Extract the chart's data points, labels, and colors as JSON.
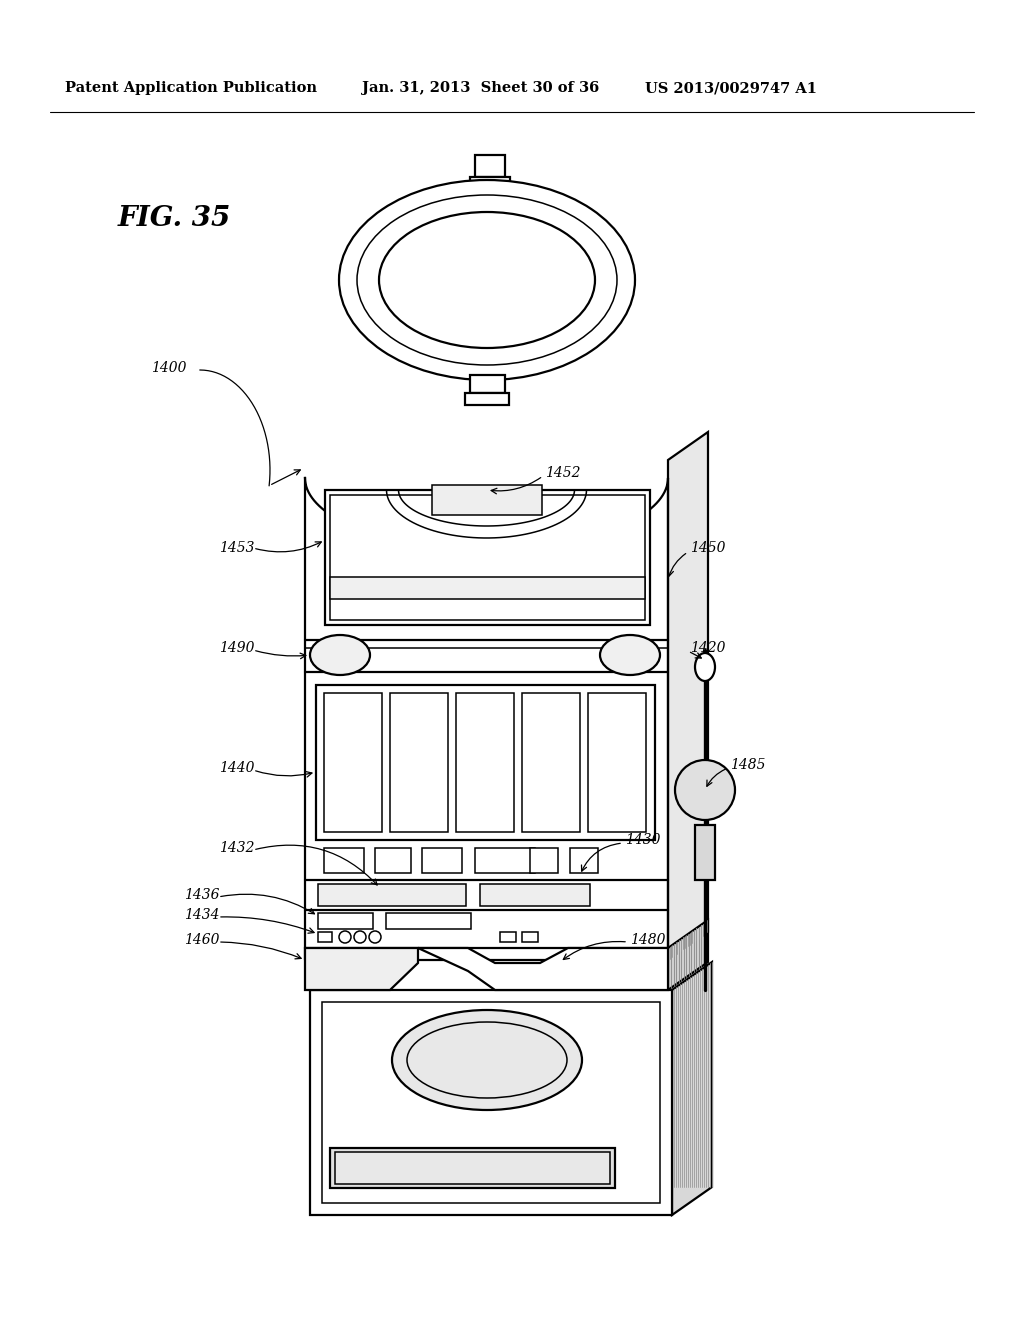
{
  "title_left": "Patent Application Publication",
  "title_mid": "Jan. 31, 2013  Sheet 30 of 36",
  "title_right": "US 2013/0029747 A1",
  "fig_label": "FIG. 35",
  "bg_color": "#ffffff",
  "line_color": "#000000"
}
